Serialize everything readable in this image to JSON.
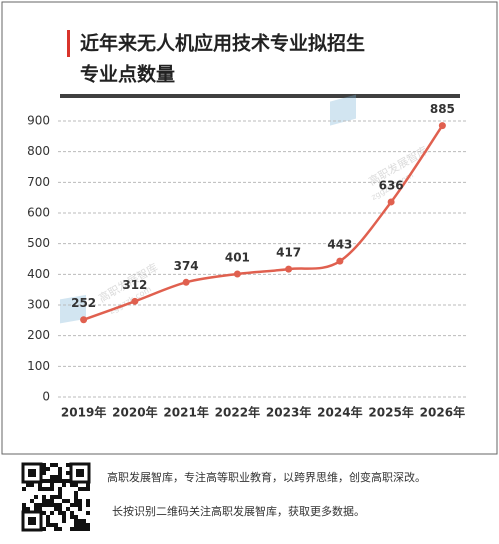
{
  "chart_data": {
    "type": "line",
    "title": [
      "近年来无人机应用技术专业拟招生",
      "专业点数量"
    ],
    "categories": [
      "2019年",
      "2020年",
      "2021年",
      "2022年",
      "2023年",
      "2024年",
      "2025年",
      "2026年"
    ],
    "series": [
      {
        "name": "专业点数量",
        "color": "#e0604f",
        "values": [
          252,
          312,
          374,
          401,
          417,
          443,
          636,
          885
        ]
      }
    ],
    "ylim": [
      0,
      900
    ],
    "yticks": [
      0,
      100,
      200,
      300,
      400,
      500,
      600,
      700,
      800,
      900
    ],
    "grid": true,
    "smooth": true
  },
  "watermark": {
    "name": "高职发展智库",
    "url": "zggzzk.com"
  },
  "footer": {
    "lines": [
      "高职发展智库，专注高等职业教育，以跨界思维，创变高职深改。",
      "长按识别二维码关注高职发展智库，获取更多数据。"
    ]
  }
}
